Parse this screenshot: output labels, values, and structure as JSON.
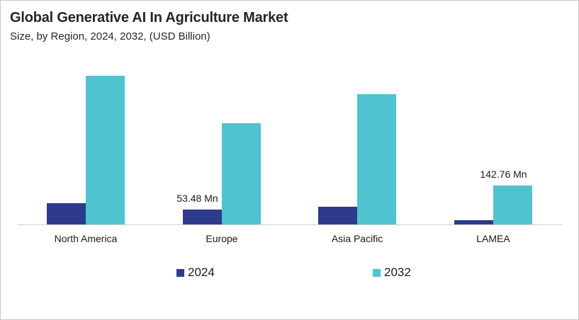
{
  "header": {
    "title": "Global Generative AI In Agriculture Market",
    "subtitle": "Size, by Region, 2024, 2032, (USD Billion)"
  },
  "legend": [
    {
      "label": "2024",
      "color": "#2e3a8c"
    },
    {
      "label": "2032",
      "color": "#4fc3d0"
    }
  ],
  "chart_data": {
    "type": "bar",
    "title": "Global Generative AI In Agriculture Market",
    "subtitle": "Size, by Region, 2024, 2032, (USD Billion)",
    "xlabel": "",
    "ylabel": "",
    "categories": [
      "North America",
      "Europe",
      "Asia Pacific",
      "LAMEA"
    ],
    "series": [
      {
        "name": "2024",
        "color": "#2e3a8c",
        "values": [
          78,
          53.48,
          65,
          16
        ]
      },
      {
        "name": "2032",
        "color": "#4fc3d0",
        "values": [
          546,
          372,
          478,
          142.76
        ]
      }
    ],
    "annotations": [
      {
        "category": "Europe",
        "series": "2024",
        "text": "53.48 Mn"
      },
      {
        "category": "LAMEA",
        "series": "2032",
        "text": "142.76 Mn"
      }
    ],
    "grid": false,
    "y_axis_visible": false,
    "legend_position": "bottom",
    "ylim": [
      0,
      600
    ]
  }
}
